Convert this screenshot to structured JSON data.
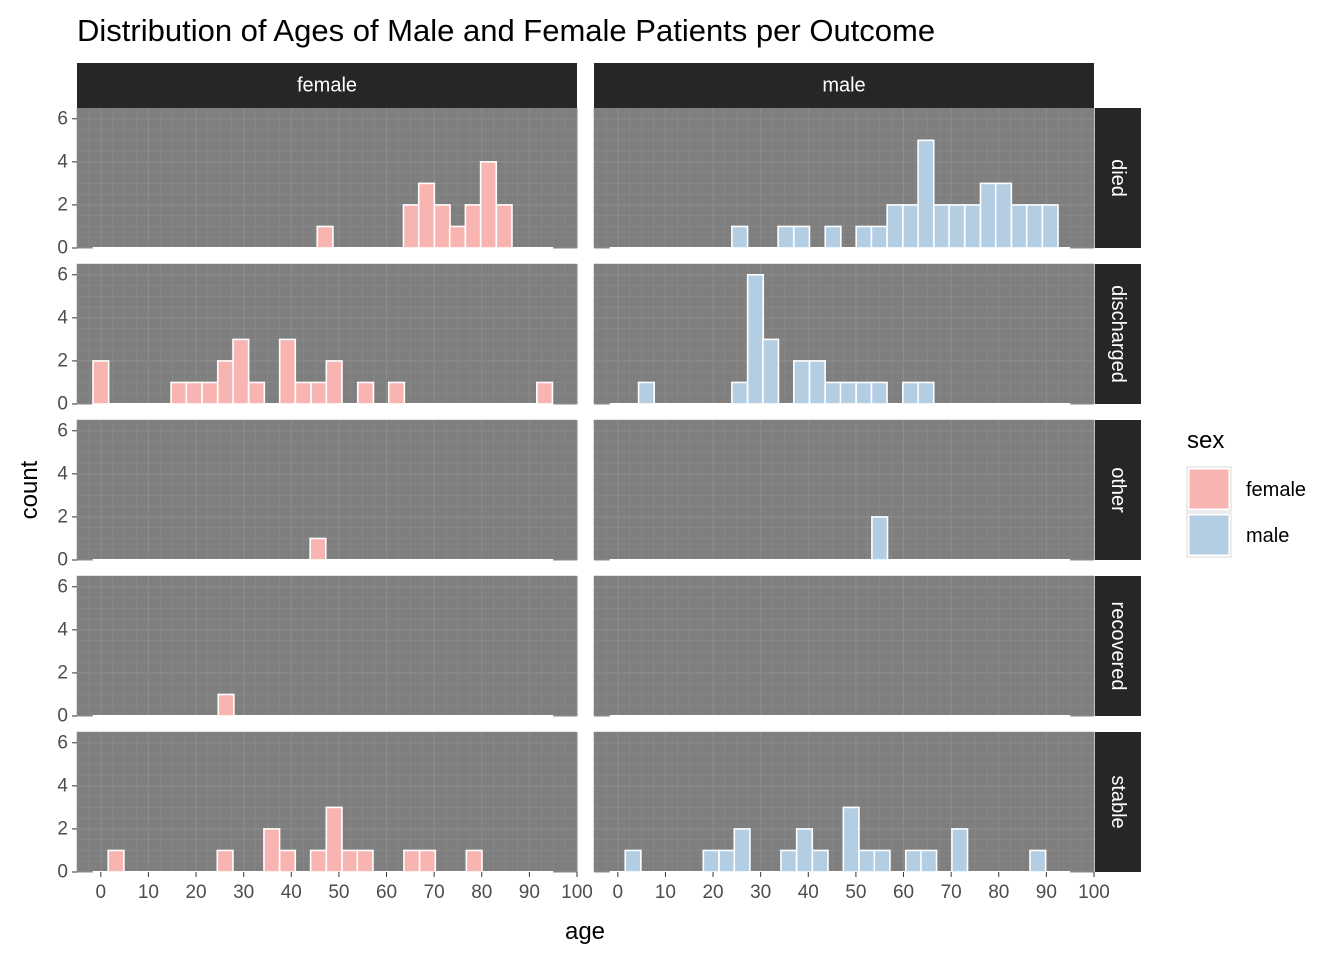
{
  "chart_data": {
    "type": "bar",
    "subtype": "faceted-histogram",
    "title": "Distribution of Ages of Male and Female Patients per Outcome",
    "xlabel": "age",
    "ylabel": "count",
    "xlim": [
      -5,
      100
    ],
    "ylim": [
      0,
      6.5
    ],
    "x_ticks": [
      0,
      10,
      20,
      30,
      40,
      50,
      60,
      70,
      80,
      90,
      100
    ],
    "y_ticks": [
      0,
      2,
      4,
      6
    ],
    "bin_width": 3.28,
    "columns": [
      "female",
      "male"
    ],
    "rows": [
      "died",
      "discharged",
      "other",
      "recovered",
      "stable"
    ],
    "legend": {
      "title": "sex",
      "position": "right",
      "entries": [
        {
          "label": "female",
          "color": "#f8b4b0"
        },
        {
          "label": "male",
          "color": "#b3cde3"
        }
      ]
    },
    "colors": {
      "panel_background": "#7f7f7f",
      "grid": "#8c8c8c",
      "strip_background": "#262626",
      "bar_outline": "#ffffff"
    },
    "series": [
      {
        "name": "female",
        "outcome": "died",
        "bin_centers": [
          47.1,
          65.2,
          68.4,
          71.7,
          74.9,
          78.2,
          81.4,
          84.7
        ],
        "counts": [
          1,
          2,
          3,
          2,
          1,
          2,
          4,
          2
        ]
      },
      {
        "name": "male",
        "outcome": "died",
        "bin_centers": [
          25.6,
          35.3,
          38.6,
          45.2,
          51.7,
          54.9,
          58.2,
          61.5,
          64.7,
          68.0,
          71.2,
          74.5,
          77.8,
          81.0,
          84.3,
          87.5,
          90.8
        ],
        "counts": [
          1,
          1,
          1,
          1,
          1,
          1,
          2,
          2,
          5,
          2,
          2,
          2,
          3,
          3,
          2,
          2,
          2
        ]
      },
      {
        "name": "female",
        "outcome": "discharged",
        "bin_centers": [
          0.0,
          16.4,
          19.6,
          22.9,
          26.2,
          29.4,
          32.7,
          39.2,
          42.5,
          45.8,
          49.0,
          55.6,
          62.1,
          93.2
        ],
        "counts": [
          2,
          1,
          1,
          1,
          2,
          3,
          1,
          3,
          1,
          1,
          2,
          1,
          1,
          1
        ]
      },
      {
        "name": "male",
        "outcome": "discharged",
        "bin_centers": [
          6.0,
          25.6,
          28.9,
          32.1,
          38.6,
          41.9,
          45.2,
          48.4,
          51.7,
          54.9,
          61.5,
          64.7
        ],
        "counts": [
          1,
          1,
          6,
          3,
          2,
          2,
          1,
          1,
          1,
          1,
          1,
          1
        ]
      },
      {
        "name": "female",
        "outcome": "other",
        "bin_centers": [
          45.6
        ],
        "counts": [
          1
        ]
      },
      {
        "name": "male",
        "outcome": "other",
        "bin_centers": [
          55.0
        ],
        "counts": [
          2
        ]
      },
      {
        "name": "female",
        "outcome": "recovered",
        "bin_centers": [
          26.3
        ],
        "counts": [
          1
        ]
      },
      {
        "name": "male",
        "outcome": "recovered",
        "bin_centers": [],
        "counts": []
      },
      {
        "name": "female",
        "outcome": "stable",
        "bin_centers": [
          3.2,
          26.1,
          35.9,
          39.2,
          45.7,
          49.0,
          52.3,
          55.5,
          65.3,
          68.6,
          78.4
        ],
        "counts": [
          1,
          1,
          2,
          1,
          1,
          3,
          1,
          1,
          1,
          1,
          1
        ]
      },
      {
        "name": "male",
        "outcome": "stable",
        "bin_centers": [
          3.2,
          19.6,
          22.9,
          26.1,
          35.9,
          39.2,
          42.5,
          49.0,
          52.3,
          55.5,
          62.1,
          65.3,
          71.8,
          88.2
        ],
        "counts": [
          1,
          1,
          1,
          2,
          1,
          2,
          1,
          3,
          1,
          1,
          1,
          1,
          2,
          1
        ]
      }
    ]
  }
}
